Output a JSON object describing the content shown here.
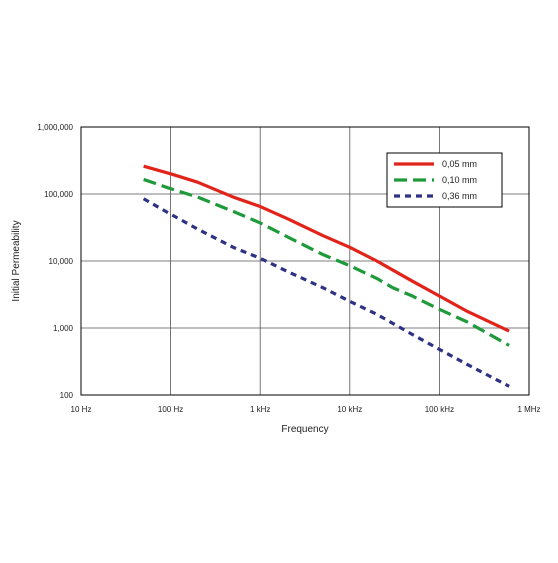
{
  "chart_data": {
    "type": "line",
    "title": "",
    "xlabel": "Frequency",
    "ylabel": "Initial Permeability",
    "x_scale": "log",
    "y_scale": "log",
    "xlim": [
      10,
      1000000
    ],
    "ylim": [
      100,
      1000000
    ],
    "x_ticks": [
      {
        "value": 10,
        "label": "10 Hz"
      },
      {
        "value": 100,
        "label": "100 Hz"
      },
      {
        "value": 1000,
        "label": "1 kHz"
      },
      {
        "value": 10000,
        "label": "10 kHz"
      },
      {
        "value": 100000,
        "label": "100 kHz"
      },
      {
        "value": 1000000,
        "label": "1 MHz"
      }
    ],
    "y_ticks": [
      {
        "value": 100,
        "label": "100"
      },
      {
        "value": 1000,
        "label": "1,000"
      },
      {
        "value": 10000,
        "label": "10,000"
      },
      {
        "value": 100000,
        "label": "100,000"
      },
      {
        "value": 1000000,
        "label": "1,000,000"
      }
    ],
    "grid": true,
    "legend_position": "top-right",
    "series": [
      {
        "name": "0,05 mm",
        "color": "#e2231a",
        "dash": "solid",
        "x": [
          50,
          100,
          200,
          500,
          1000,
          2000,
          5000,
          10000,
          20000,
          50000,
          100000,
          200000,
          600000
        ],
        "y": [
          260000,
          200000,
          150000,
          90000,
          65000,
          43000,
          24000,
          16000,
          10000,
          5000,
          3000,
          1800,
          900
        ]
      },
      {
        "name": "0,10 mm",
        "color": "#1f9a3b",
        "dash": "dashed",
        "x": [
          50,
          100,
          200,
          500,
          1000,
          2000,
          5000,
          10000,
          20000,
          30000,
          50000,
          100000,
          200000,
          600000
        ],
        "y": [
          165000,
          120000,
          90000,
          55000,
          37000,
          23000,
          12500,
          8500,
          5500,
          4000,
          3000,
          1900,
          1250,
          550
        ]
      },
      {
        "name": "0,36 mm",
        "color": "#2e3282",
        "dash": "dotted",
        "x": [
          50,
          100,
          200,
          500,
          1000,
          2000,
          5000,
          10000,
          20000,
          50000,
          100000,
          200000,
          600000
        ],
        "y": [
          85000,
          50000,
          30000,
          16000,
          11000,
          7000,
          4000,
          2500,
          1600,
          800,
          480,
          290,
          135
        ]
      }
    ]
  }
}
